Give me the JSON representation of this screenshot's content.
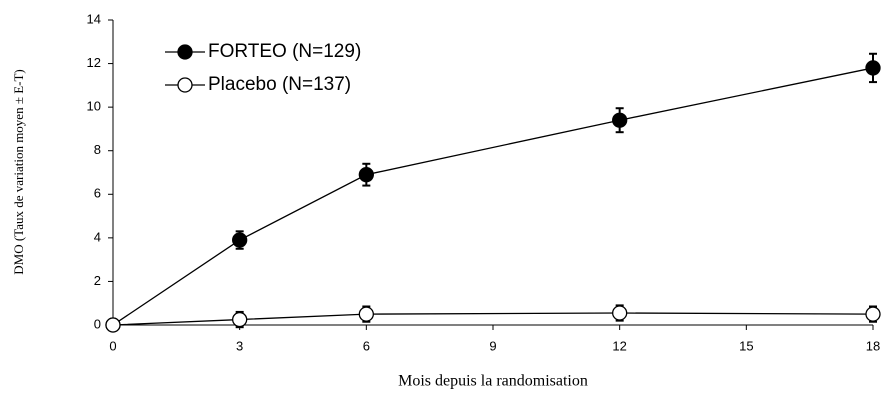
{
  "chart_data": {
    "type": "line",
    "x_label": "Mois depuis la randomisation",
    "y_label": "DMO (Taux de variation moyen ± E-T)",
    "x": [
      0,
      3,
      6,
      12,
      18
    ],
    "series": [
      {
        "name": "FORTEO (N=129)",
        "color": "#000000",
        "marker_fill": "#000000",
        "values": [
          0,
          3.9,
          6.9,
          9.4,
          11.8
        ],
        "errors": [
          0,
          0.4,
          0.5,
          0.55,
          0.65
        ]
      },
      {
        "name": "Placebo (N=137)",
        "color": "#000000",
        "marker_fill": "#ffffff",
        "values": [
          0,
          0.25,
          0.5,
          0.55,
          0.5
        ],
        "errors": [
          0,
          0.35,
          0.35,
          0.35,
          0.35
        ]
      }
    ],
    "xlim": [
      0,
      18
    ],
    "xticks": [
      0,
      3,
      6,
      9,
      12,
      15,
      18
    ],
    "ylim": [
      0,
      14
    ],
    "yticks": [
      0,
      2,
      4,
      6,
      8,
      10,
      12,
      14
    ],
    "grid": false,
    "legend": "upper-left"
  }
}
